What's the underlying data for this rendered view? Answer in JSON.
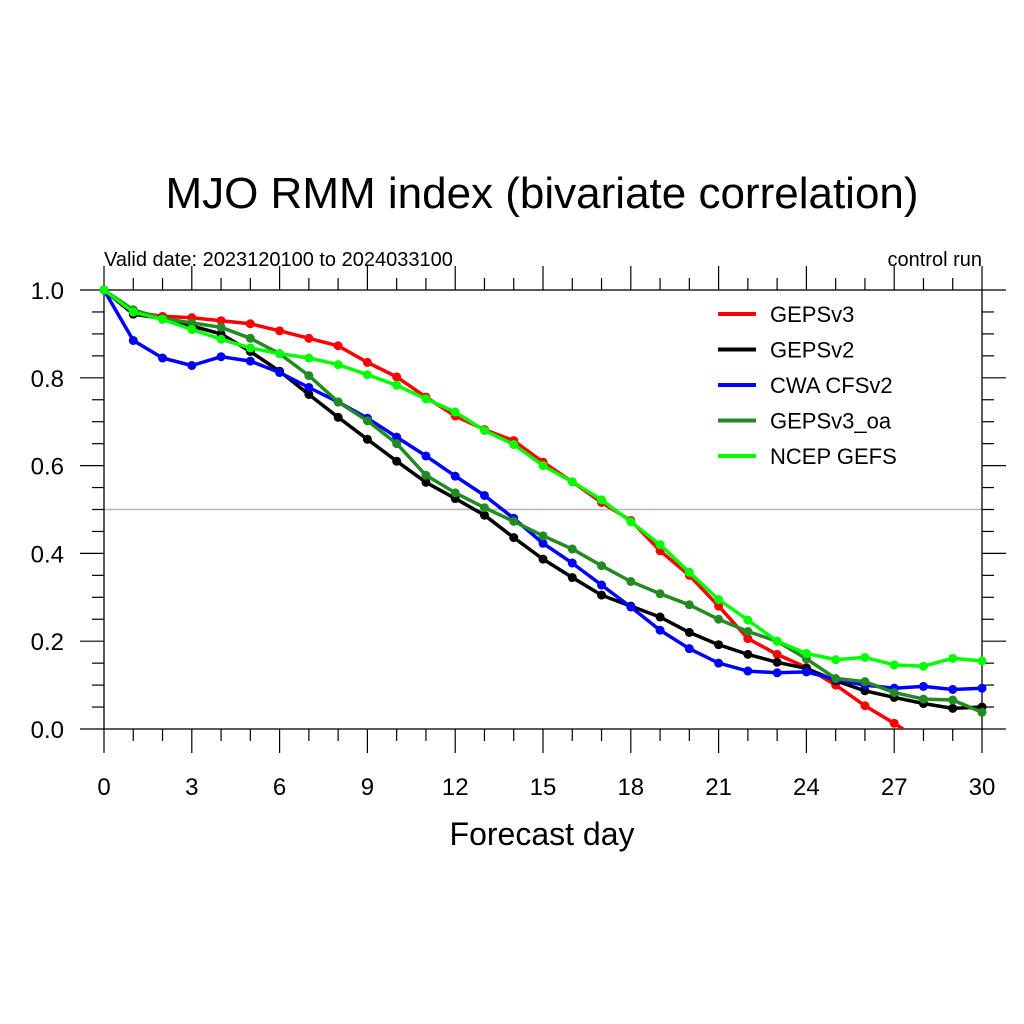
{
  "chart_data": {
    "type": "line",
    "title": "MJO RMM index (bivariate correlation)",
    "subtitle_left": "Valid date: 2023120100 to 2024033100",
    "subtitle_right": "control run",
    "xlabel": "Forecast day",
    "ylabel": "",
    "xlim": [
      0,
      30
    ],
    "ylim": [
      0,
      1
    ],
    "xticks": [
      "0",
      "3",
      "6",
      "9",
      "12",
      "15",
      "18",
      "21",
      "24",
      "27",
      "30"
    ],
    "yticks": [
      "0.0",
      "0.2",
      "0.4",
      "0.6",
      "0.8",
      "1.0"
    ],
    "reference_line": 0.5,
    "legend_position": "top-right",
    "grid": false,
    "series": [
      {
        "name": "GEPSv3",
        "color": "#ff0000",
        "x": [
          0,
          1,
          2,
          3,
          4,
          5,
          6,
          7,
          8,
          9,
          10,
          11,
          12,
          13,
          14,
          15,
          16,
          17,
          18,
          19,
          20,
          21,
          22,
          23,
          24,
          25,
          26,
          27
        ],
        "values": [
          1.0,
          0.95,
          0.94,
          0.937,
          0.93,
          0.923,
          0.907,
          0.89,
          0.873,
          0.835,
          0.802,
          0.756,
          0.713,
          0.682,
          0.657,
          0.608,
          0.563,
          0.516,
          0.475,
          0.406,
          0.35,
          0.28,
          0.206,
          0.17,
          0.14,
          0.1,
          0.053,
          0.013
        ],
        "line_end": [
          27.3,
          0.0
        ]
      },
      {
        "name": "GEPSv2",
        "color": "#000000",
        "x": [
          0,
          1,
          2,
          3,
          4,
          5,
          6,
          7,
          8,
          9,
          10,
          11,
          12,
          13,
          14,
          15,
          16,
          17,
          18,
          19,
          20,
          21,
          22,
          23,
          24,
          25,
          26,
          27,
          28,
          29,
          30
        ],
        "values": [
          1.0,
          0.945,
          0.935,
          0.918,
          0.9,
          0.86,
          0.815,
          0.762,
          0.71,
          0.66,
          0.61,
          0.562,
          0.525,
          0.487,
          0.436,
          0.387,
          0.345,
          0.305,
          0.28,
          0.255,
          0.22,
          0.192,
          0.17,
          0.152,
          0.138,
          0.11,
          0.087,
          0.072,
          0.058,
          0.047,
          0.05
        ]
      },
      {
        "name": "CWA CFSv2",
        "color": "#0000ff",
        "x": [
          0,
          1,
          2,
          3,
          4,
          5,
          6,
          7,
          8,
          9,
          10,
          11,
          12,
          13,
          14,
          15,
          16,
          17,
          18,
          19,
          20,
          21,
          22,
          23,
          24,
          25,
          26,
          27,
          28,
          29,
          30
        ],
        "values": [
          1.0,
          0.885,
          0.845,
          0.828,
          0.848,
          0.838,
          0.812,
          0.778,
          0.745,
          0.708,
          0.665,
          0.622,
          0.576,
          0.532,
          0.48,
          0.423,
          0.378,
          0.328,
          0.278,
          0.225,
          0.183,
          0.15,
          0.132,
          0.128,
          0.13,
          0.113,
          0.1,
          0.093,
          0.097,
          0.09,
          0.093
        ]
      },
      {
        "name": "GEPSv3_oa",
        "color": "#228b22",
        "x": [
          0,
          1,
          2,
          3,
          4,
          5,
          6,
          7,
          8,
          9,
          10,
          11,
          12,
          13,
          14,
          15,
          16,
          17,
          18,
          19,
          20,
          21,
          22,
          23,
          24,
          25,
          26,
          27,
          28,
          29,
          30
        ],
        "values": [
          1.0,
          0.955,
          0.935,
          0.925,
          0.915,
          0.89,
          0.855,
          0.805,
          0.745,
          0.702,
          0.65,
          0.578,
          0.538,
          0.504,
          0.473,
          0.44,
          0.41,
          0.372,
          0.336,
          0.308,
          0.283,
          0.25,
          0.222,
          0.2,
          0.16,
          0.115,
          0.108,
          0.083,
          0.068,
          0.066,
          0.038
        ]
      },
      {
        "name": "NCEP GEFS",
        "color": "#00ff00",
        "x": [
          0,
          1,
          2,
          3,
          4,
          5,
          6,
          7,
          8,
          9,
          10,
          11,
          12,
          13,
          14,
          15,
          16,
          17,
          18,
          19,
          20,
          21,
          22,
          23,
          24,
          25,
          26,
          27,
          28,
          29,
          30
        ],
        "values": [
          1.0,
          0.95,
          0.933,
          0.91,
          0.888,
          0.868,
          0.855,
          0.845,
          0.83,
          0.807,
          0.783,
          0.752,
          0.722,
          0.68,
          0.648,
          0.6,
          0.563,
          0.522,
          0.472,
          0.42,
          0.357,
          0.295,
          0.248,
          0.2,
          0.172,
          0.158,
          0.163,
          0.146,
          0.143,
          0.161,
          0.155
        ]
      }
    ]
  }
}
